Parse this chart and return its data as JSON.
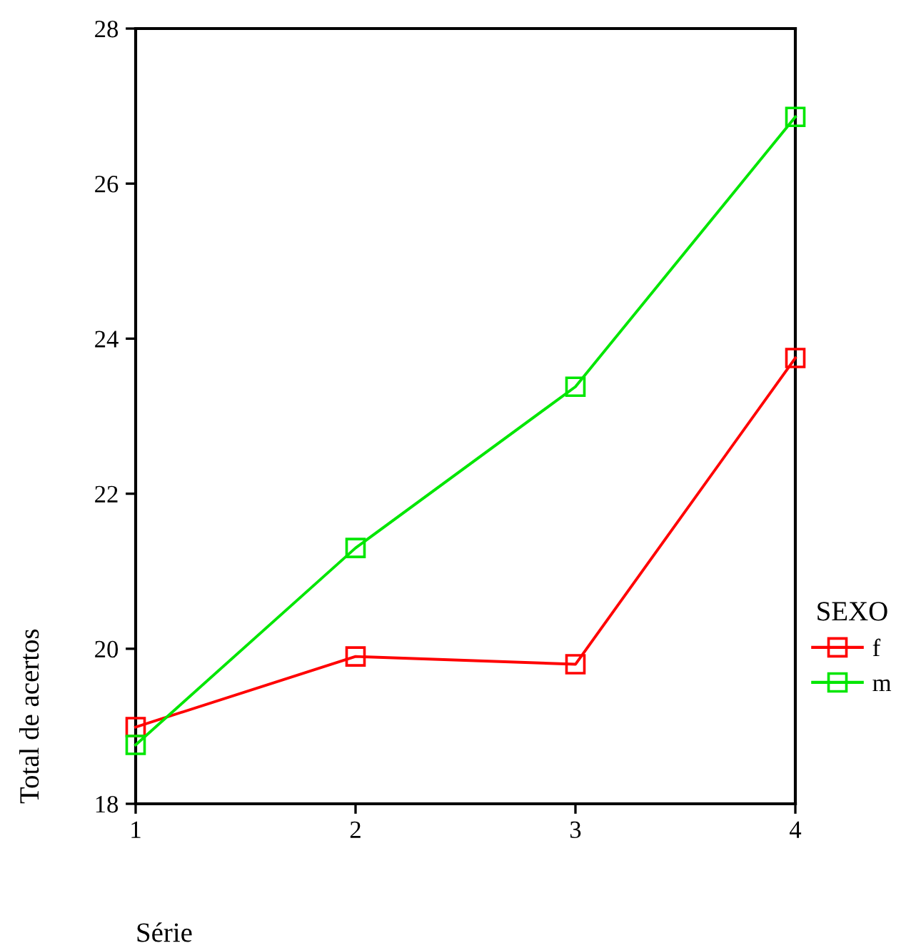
{
  "chart_data": {
    "type": "line",
    "xlabel": "Série",
    "ylabel": "Total de acertos",
    "legend_title": "SEXO",
    "x": [
      1,
      2,
      3,
      4
    ],
    "series": [
      {
        "name": "f",
        "color": "#ff0000",
        "values": [
          18.99,
          19.9,
          19.8,
          23.75
        ]
      },
      {
        "name": "m",
        "color": "#00e600",
        "values": [
          18.76,
          21.3,
          23.38,
          26.86
        ]
      }
    ],
    "xlim": [
      1,
      4
    ],
    "xticks": [
      1,
      2,
      3,
      4
    ],
    "ylim": [
      18,
      28
    ],
    "yticks": [
      18,
      20,
      22,
      24,
      26,
      28
    ],
    "grid": false,
    "legend": "right",
    "marker": "square",
    "line_style": "solid"
  }
}
